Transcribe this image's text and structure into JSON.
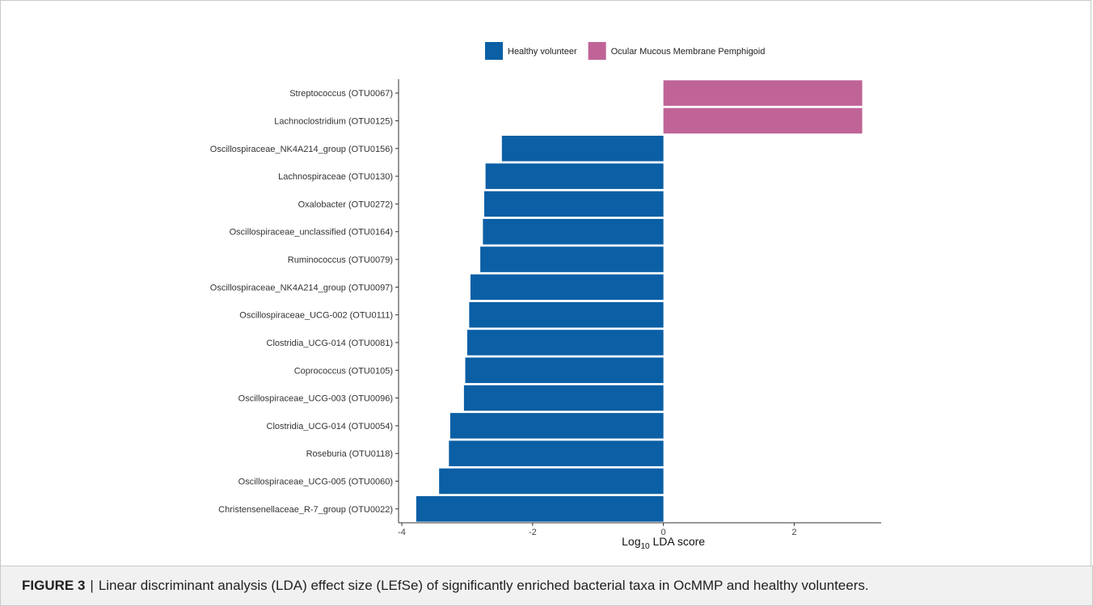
{
  "colors": {
    "healthy": "#0b5fa5",
    "ocmmp": "#c06497"
  },
  "caption": {
    "label": "FIGURE 3",
    "separator": "|",
    "text": "Linear discriminant analysis (LDA) effect size (LEfSe) of significantly enriched bacterial taxa in OcMMP and healthy volunteers."
  },
  "chart_data": {
    "type": "bar",
    "orientation": "horizontal",
    "xlabel_main": "Log",
    "xlabel_sub": "10",
    "xlabel_rest": " LDA score",
    "xlim": [
      -4.05,
      3.33
    ],
    "xticks": [
      -4,
      -2,
      0,
      2
    ],
    "xtick_labels": [
      "-4",
      "-2",
      "0",
      "2"
    ],
    "legend_position": "top",
    "legend": [
      {
        "name": "Healthy volunteer",
        "color": "#0b5fa5"
      },
      {
        "name": "Ocular Mucous Membrane Pemphigoid",
        "color": "#c06497"
      }
    ],
    "categories": [
      "Streptococcus (OTU0067)",
      "Lachnoclostridium (OTU0125)",
      "Oscillospiraceae_NK4A214_group (OTU0156)",
      "Lachnospiraceae (OTU0130)",
      "Oxalobacter (OTU0272)",
      "Oscillospiraceae_unclassified (OTU0164)",
      "Ruminococcus (OTU0079)",
      "Oscillospiraceae_NK4A214_group (OTU0097)",
      "Oscillospiraceae_UCG-002 (OTU0111)",
      "Clostridia_UCG-014 (OTU0081)",
      "Coprococcus (OTU0105)",
      "Oscillospiraceae_UCG-003 (OTU0096)",
      "Clostridia_UCG-014 (OTU0054)",
      "Roseburia (OTU0118)",
      "Oscillospiraceae_UCG-005 (OTU0060)",
      "Christensenellaceae_R-7_group (OTU0022)"
    ],
    "values": [
      3.04,
      3.04,
      -2.47,
      -2.72,
      -2.74,
      -2.76,
      -2.8,
      -2.95,
      -2.97,
      -3.0,
      -3.03,
      -3.05,
      -3.26,
      -3.28,
      -3.43,
      -3.78
    ],
    "groups": [
      "ocmmp",
      "ocmmp",
      "healthy",
      "healthy",
      "healthy",
      "healthy",
      "healthy",
      "healthy",
      "healthy",
      "healthy",
      "healthy",
      "healthy",
      "healthy",
      "healthy",
      "healthy",
      "healthy"
    ]
  }
}
